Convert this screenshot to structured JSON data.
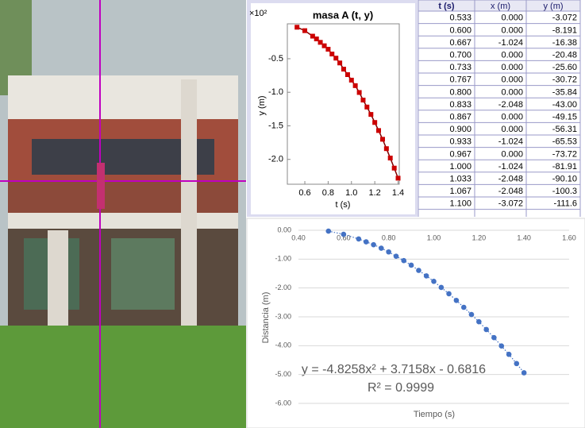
{
  "chart_data": [
    {
      "type": "scatter",
      "title": "masa A (t, y)",
      "y_multiplier": "×10²",
      "xlabel": "t (s)",
      "ylabel": "y (m)",
      "x": [
        0.533,
        0.6,
        0.667,
        0.7,
        0.733,
        0.767,
        0.8,
        0.833,
        0.867,
        0.9,
        0.933,
        0.967,
        1.0,
        1.033,
        1.067,
        1.1,
        1.133,
        1.167,
        1.2,
        1.233,
        1.267,
        1.3,
        1.333,
        1.367,
        1.4
      ],
      "values": [
        -0.03072,
        -0.08191,
        -0.1638,
        -0.2048,
        -0.256,
        -0.3072,
        -0.3584,
        -0.43,
        -0.4915,
        -0.5631,
        -0.6553,
        -0.7372,
        -0.8191,
        -0.901,
        -1.003,
        -1.116,
        -1.22,
        -1.33,
        -1.45,
        -1.57,
        -1.7,
        -1.84,
        -1.98,
        -2.13,
        -2.28
      ],
      "color": "#cc0000",
      "line_color": "#800000",
      "marker": "square",
      "line_style": "solid",
      "xlim": [
        0.45,
        1.41
      ],
      "ylim": [
        -2.37,
        0.02
      ],
      "xticks": [
        0.6,
        0.8,
        {
          "value": 1,
          "label": "1.0"
        },
        1.2,
        1.4
      ],
      "yticks": [
        -0.5,
        {
          "value": -1,
          "label": "-1.0"
        },
        -1.5,
        {
          "value": -2,
          "label": "-2.0"
        }
      ],
      "grid": false
    },
    {
      "type": "scatter",
      "xlabel": "Tiempo (s)",
      "ylabel": "Distancia (m)",
      "x": [
        0.533,
        0.6,
        0.667,
        0.7,
        0.733,
        0.767,
        0.8,
        0.833,
        0.867,
        0.9,
        0.933,
        0.967,
        1.0,
        1.033,
        1.067,
        1.1,
        1.133,
        1.167,
        1.2,
        1.233,
        1.267,
        1.3,
        1.333,
        1.367,
        1.4
      ],
      "values": [
        -0.03,
        -0.14,
        -0.3,
        -0.4,
        -0.5,
        -0.62,
        -0.75,
        -0.9,
        -1.05,
        -1.21,
        -1.39,
        -1.58,
        -1.77,
        -1.98,
        -2.2,
        -2.43,
        -2.67,
        -2.92,
        -3.17,
        -3.44,
        -3.72,
        -4.01,
        -4.3,
        -4.62,
        -4.94
      ],
      "color": "#4472c4",
      "line_color": "#4472c4",
      "marker": "circle",
      "line_style": "dotted",
      "xlim": [
        0.4,
        1.6
      ],
      "ylim": [
        -6,
        0
      ],
      "xticks": [
        {
          "value": 0.4,
          "label": "0.40"
        },
        {
          "value": 0.6,
          "label": "0.60"
        },
        {
          "value": 0.8,
          "label": "0.80"
        },
        {
          "value": 1,
          "label": "1.00"
        },
        {
          "value": 1.2,
          "label": "1.20"
        },
        {
          "value": 1.4,
          "label": "1.40"
        },
        {
          "value": 1.6,
          "label": "1.60"
        }
      ],
      "yticks": [
        {
          "value": 0,
          "label": "0.00"
        },
        {
          "value": -1,
          "label": "-1.00"
        },
        {
          "value": -2,
          "label": "-2.00"
        },
        {
          "value": -3,
          "label": "-3.00"
        },
        {
          "value": -4,
          "label": "-4.00"
        },
        {
          "value": -5,
          "label": "-5.00"
        },
        {
          "value": -6,
          "label": "-6.00"
        }
      ],
      "grid": true,
      "annotations": [
        "y = -4.8258x² + 3.7158x - 0.6816",
        "R² = 0.9999"
      ]
    }
  ],
  "table": {
    "columns": [
      "t (s)",
      "x (m)",
      "y (m)"
    ],
    "rows": [
      [
        "0.533",
        "0.000",
        "-3.072"
      ],
      [
        "0.600",
        "0.000",
        "-8.191"
      ],
      [
        "0.667",
        "-1.024",
        "-16.38"
      ],
      [
        "0.700",
        "0.000",
        "-20.48"
      ],
      [
        "0.733",
        "0.000",
        "-25.60"
      ],
      [
        "0.767",
        "0.000",
        "-30.72"
      ],
      [
        "0.800",
        "0.000",
        "-35.84"
      ],
      [
        "0.833",
        "-2.048",
        "-43.00"
      ],
      [
        "0.867",
        "0.000",
        "-49.15"
      ],
      [
        "0.900",
        "0.000",
        "-56.31"
      ],
      [
        "0.933",
        "-1.024",
        "-65.53"
      ],
      [
        "0.967",
        "0.000",
        "-73.72"
      ],
      [
        "1.000",
        "-1.024",
        "-81.91"
      ],
      [
        "1.033",
        "-2.048",
        "-90.10"
      ],
      [
        "1.067",
        "-2.048",
        "-100.3"
      ],
      [
        "1.100",
        "-3.072",
        "-111.6"
      ]
    ]
  }
}
